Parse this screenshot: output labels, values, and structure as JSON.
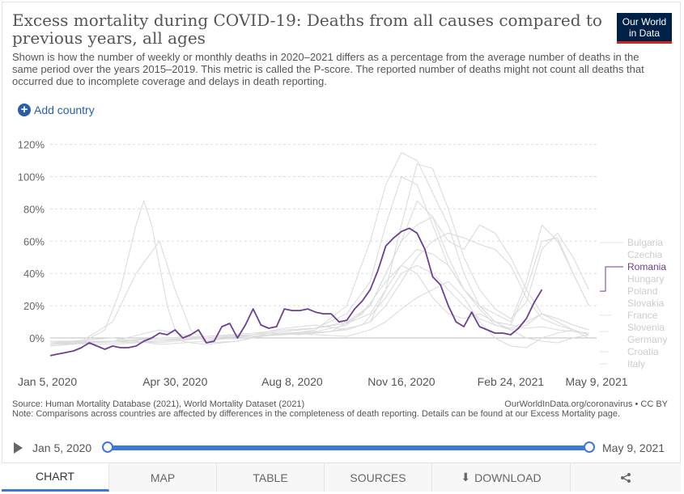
{
  "header": {
    "title": "Excess mortality during COVID-19: Deaths from all causes compared to previous years, all ages",
    "logo_line1": "Our World",
    "logo_line2": "in Data",
    "subtitle": "Shown is how the number of weekly or monthly deaths in 2020–2021 differs as a percentage from the average number of deaths in the same period over the years 2015–2019. This metric is called the P-score. The reported number of deaths might not count all deaths that occurred due to incomplete coverage and delays in death reporting."
  },
  "controls": {
    "add_country": "Add country"
  },
  "footer": {
    "source": "Source: Human Mortality Database (2021), World Mortality Dataset (2021)",
    "url": "OurWorldInData.org/coronavirus • CC BY",
    "note": "Note: Comparisons across countries are affected by differences in the completeness of death reporting. Details can be found at our Excess Mortality page."
  },
  "timeline": {
    "start": "Jan 5, 2020",
    "end": "May 9, 2021"
  },
  "tabs": {
    "chart": "CHART",
    "map": "MAP",
    "table": "TABLE",
    "sources": "SOURCES",
    "download": "DOWNLOAD"
  },
  "colors": {
    "highlight": "#6d3e91",
    "muted": "#dcdcdc",
    "slider": "#3c78d8",
    "brand": "#002147"
  },
  "chart_data": {
    "type": "line",
    "title": "",
    "xlabel": "",
    "ylabel": "",
    "ylim": [
      -15,
      125
    ],
    "yticks": [
      0,
      20,
      40,
      60,
      80,
      100,
      120
    ],
    "ytick_labels": [
      "0%",
      "20%",
      "40%",
      "60%",
      "80%",
      "100%",
      "120%"
    ],
    "xlim": [
      0,
      70
    ],
    "xtick_positions": [
      0,
      16,
      31,
      45,
      59,
      70
    ],
    "xtick_labels": [
      "Jan 5, 2020",
      "Apr 30, 2020",
      "Aug 8, 2020",
      "Nov 16, 2020",
      "Feb 24, 2021",
      "May 9, 2021"
    ],
    "grid": "horizontal-dashed",
    "x_unit": "weeks since Jan 5, 2020",
    "highlight": "Romania",
    "legend_placement": "right",
    "series": [
      {
        "name": "Bulgaria",
        "x": [
          0,
          8,
          14,
          20,
          26,
          30,
          34,
          38,
          41,
          43,
          45,
          47,
          49,
          51,
          53,
          55,
          57,
          59,
          61,
          63,
          65,
          67,
          69
        ],
        "y": [
          -3,
          0,
          -4,
          -2,
          2,
          6,
          8,
          5,
          10,
          30,
          70,
          108,
          105,
          80,
          50,
          30,
          18,
          12,
          22,
          55,
          65,
          50,
          30
        ]
      },
      {
        "name": "Czechia",
        "x": [
          0,
          8,
          14,
          20,
          26,
          30,
          34,
          38,
          41,
          43,
          45,
          47,
          49,
          51,
          53,
          55,
          57,
          59,
          61,
          63,
          65,
          67,
          69
        ],
        "y": [
          -4,
          -2,
          -3,
          0,
          1,
          3,
          4,
          8,
          20,
          40,
          60,
          70,
          75,
          60,
          55,
          70,
          65,
          50,
          30,
          15,
          10,
          5,
          0
        ]
      },
      {
        "name": "Romania",
        "x": [
          0,
          1,
          2,
          3,
          4,
          5,
          6,
          7,
          8,
          9,
          10,
          11,
          12,
          13,
          14,
          15,
          16,
          17,
          18,
          19,
          20,
          21,
          22,
          23,
          24,
          25,
          26,
          27,
          28,
          29,
          30,
          31,
          32,
          33,
          34,
          35,
          36,
          37,
          38,
          39,
          40,
          41,
          42,
          43,
          44,
          45,
          46,
          47,
          48,
          49,
          50,
          51,
          52,
          53,
          54,
          55,
          56,
          57,
          58,
          59,
          60,
          61,
          62,
          63
        ],
        "y": [
          -11,
          -10,
          -9,
          -8,
          -6,
          -3,
          -5,
          -7,
          -5,
          -6,
          -6,
          -5,
          -2,
          0,
          3,
          2,
          5,
          0,
          2,
          5,
          -3,
          -2,
          7,
          9,
          0,
          8,
          18,
          8,
          6,
          7,
          18,
          17,
          17,
          18,
          16,
          15,
          15,
          10,
          11,
          18,
          23,
          30,
          42,
          57,
          62,
          66,
          68,
          65,
          55,
          38,
          33,
          20,
          10,
          7,
          16,
          7,
          5,
          3,
          3,
          2,
          6,
          12,
          22,
          30
        ]
      },
      {
        "name": "Hungary",
        "x": [
          0,
          8,
          14,
          20,
          26,
          30,
          34,
          38,
          41,
          43,
          45,
          47,
          49,
          51,
          53,
          55,
          57,
          59,
          61,
          63,
          65,
          67,
          69
        ],
        "y": [
          -2,
          -3,
          -2,
          1,
          3,
          5,
          6,
          9,
          15,
          30,
          45,
          55,
          52,
          45,
          30,
          20,
          10,
          8,
          30,
          60,
          62,
          40,
          20
        ]
      },
      {
        "name": "Poland",
        "x": [
          0,
          8,
          14,
          20,
          26,
          30,
          34,
          38,
          41,
          43,
          45,
          47,
          49,
          51,
          53,
          55,
          57,
          59,
          61,
          63,
          65,
          67,
          69
        ],
        "y": [
          -5,
          -2,
          0,
          1,
          2,
          4,
          6,
          15,
          35,
          70,
          100,
          95,
          70,
          45,
          30,
          20,
          15,
          10,
          35,
          70,
          60,
          40,
          20
        ]
      },
      {
        "name": "Slovakia",
        "x": [
          0,
          8,
          14,
          20,
          26,
          30,
          34,
          38,
          41,
          43,
          45,
          47,
          49,
          51,
          53,
          55,
          57,
          59,
          61,
          63,
          65,
          67,
          69
        ],
        "y": [
          -3,
          -4,
          -2,
          0,
          1,
          2,
          3,
          5,
          10,
          20,
          35,
          50,
          60,
          65,
          62,
          58,
          55,
          45,
          25,
          12,
          8,
          5,
          2
        ]
      },
      {
        "name": "France",
        "x": [
          0,
          4,
          8,
          11,
          14,
          16,
          18,
          20,
          24,
          28,
          32,
          36,
          40,
          43,
          45,
          47,
          49,
          51,
          53,
          55,
          57,
          59,
          61,
          63,
          65,
          67,
          69
        ],
        "y": [
          -4,
          -2,
          10,
          40,
          60,
          30,
          5,
          -3,
          -2,
          3,
          2,
          4,
          15,
          35,
          45,
          40,
          25,
          15,
          12,
          15,
          10,
          8,
          6,
          7,
          5,
          4,
          3
        ]
      },
      {
        "name": "Slovenia",
        "x": [
          0,
          8,
          14,
          20,
          26,
          30,
          34,
          38,
          41,
          43,
          45,
          47,
          49,
          51,
          53,
          55,
          57,
          59,
          61,
          63,
          65,
          67,
          69
        ],
        "y": [
          -4,
          -2,
          0,
          0,
          1,
          2,
          5,
          20,
          60,
          95,
          115,
          110,
          90,
          70,
          40,
          20,
          10,
          5,
          0,
          -2,
          -3,
          0,
          2
        ]
      },
      {
        "name": "Germany",
        "x": [
          0,
          8,
          14,
          20,
          26,
          30,
          34,
          38,
          41,
          43,
          45,
          47,
          49,
          51,
          53,
          55,
          57,
          59,
          61,
          63,
          65,
          67,
          69
        ],
        "y": [
          -2,
          -2,
          5,
          -1,
          0,
          3,
          2,
          1,
          5,
          10,
          18,
          25,
          30,
          35,
          25,
          10,
          0,
          -5,
          -6,
          0,
          3,
          5,
          2
        ]
      },
      {
        "name": "Croatia",
        "x": [
          0,
          8,
          14,
          20,
          26,
          30,
          34,
          38,
          41,
          43,
          45,
          47,
          49,
          51,
          53,
          55,
          57,
          59,
          61,
          63,
          65,
          67,
          69
        ],
        "y": [
          -3,
          -2,
          -1,
          0,
          2,
          4,
          6,
          10,
          20,
          40,
          60,
          85,
          75,
          50,
          30,
          18,
          8,
          5,
          8,
          15,
          12,
          8,
          5
        ]
      },
      {
        "name": "Italy",
        "x": [
          0,
          4,
          7,
          9,
          11,
          12,
          13,
          14,
          15,
          16,
          17,
          18,
          20,
          24,
          28,
          32,
          36,
          40,
          43,
          45,
          47,
          49,
          51,
          53,
          55,
          57,
          59,
          61,
          63,
          65,
          67,
          69
        ],
        "y": [
          -5,
          -3,
          5,
          30,
          70,
          85,
          70,
          45,
          20,
          5,
          -2,
          -3,
          -4,
          -2,
          2,
          3,
          4,
          8,
          25,
          40,
          45,
          40,
          30,
          20,
          12,
          8,
          6,
          10,
          15,
          12,
          8,
          5
        ]
      }
    ]
  }
}
